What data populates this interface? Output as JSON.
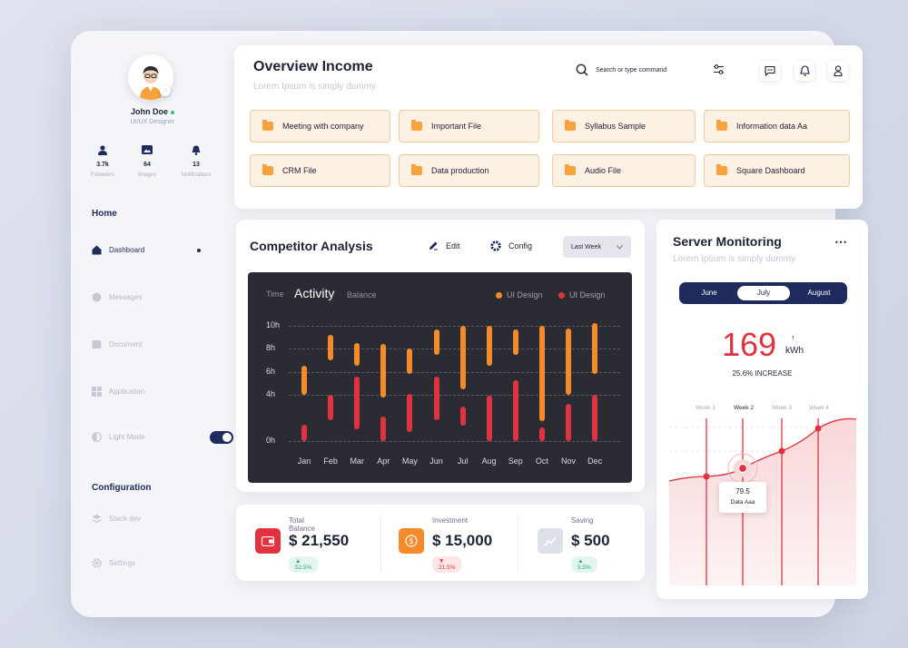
{
  "profile": {
    "name": "John Doe",
    "role": "UI/UX Designer"
  },
  "stats": [
    {
      "icon": "user-icon",
      "value": "3.7k",
      "label": "Followers"
    },
    {
      "icon": "image-icon",
      "value": "64",
      "label": "Images"
    },
    {
      "icon": "bell-icon",
      "value": "13",
      "label": "Notifications"
    }
  ],
  "sidebar": {
    "home_title": "Home",
    "items": [
      {
        "label": "Dashboard",
        "icon": "home-icon"
      },
      {
        "label": "Messages",
        "icon": "message-icon"
      },
      {
        "label": "Document",
        "icon": "document-icon"
      },
      {
        "label": "Application",
        "icon": "grid-icon"
      },
      {
        "label": "Light Mode",
        "icon": "contrast-icon"
      }
    ],
    "config_title": "Configuration",
    "config_items": [
      {
        "label": "Stack dev",
        "icon": "layers-icon"
      },
      {
        "label": "Settings",
        "icon": "gear-icon"
      }
    ]
  },
  "overview": {
    "title": "Overview Income",
    "subtitle": "Lorem Ipsum is simply dummy",
    "search_placeholder": "Search or type command",
    "folders": [
      "Meeting with company",
      "Important File",
      "Syllabus Sample",
      "Information data Aa",
      "CRM File",
      "Data production",
      "Audio File",
      "Square Dashboard"
    ]
  },
  "competitor": {
    "title": "Competitor Analysis",
    "edit_label": "Edit",
    "config_label": "Config",
    "period": "Last Week"
  },
  "chart_data": {
    "type": "bar",
    "title": "Activity",
    "left_label": "Time",
    "right_label": "Balance",
    "categories": [
      "Jan",
      "Feb",
      "Mar",
      "Apr",
      "May",
      "Jun",
      "Jul",
      "Aug",
      "Sep",
      "Oct",
      "Nov",
      "Dec"
    ],
    "yticks": [
      "10h",
      "8h",
      "6h",
      "4h",
      "0h"
    ],
    "ylim": [
      0,
      10
    ],
    "series": [
      {
        "name": "UI Design",
        "color": "#f58a2b",
        "ranges": [
          [
            4,
            6.5
          ],
          [
            7,
            9.2
          ],
          [
            6.5,
            8.5
          ],
          [
            3.8,
            8.4
          ],
          [
            5.8,
            8
          ],
          [
            7.5,
            9.7
          ],
          [
            4.5,
            10
          ],
          [
            6.5,
            10
          ],
          [
            7.5,
            9.7
          ],
          [
            1.7,
            10
          ],
          [
            4,
            9.8
          ],
          [
            5.8,
            10.2
          ]
        ]
      },
      {
        "name": "UI Design",
        "color": "#e0333f",
        "ranges": [
          [
            0,
            1.4
          ],
          [
            1.8,
            4
          ],
          [
            1,
            5.6
          ],
          [
            0,
            2.1
          ],
          [
            0.8,
            4.1
          ],
          [
            1.8,
            5.6
          ],
          [
            1.3,
            3
          ],
          [
            0,
            3.9
          ],
          [
            0,
            5.3
          ],
          [
            0,
            1.2
          ],
          [
            0,
            3.2
          ],
          [
            0,
            4
          ]
        ]
      }
    ]
  },
  "balances": [
    {
      "label": "Total Balance",
      "value": "$ 21,550",
      "change": "▲ 52.5%",
      "color": "#e0333f",
      "trend": "up"
    },
    {
      "label": "Investment",
      "value": "$ 15,000",
      "change": "▼ 21.5%",
      "color": "#f58a2b",
      "trend": "down"
    },
    {
      "label": "Saving",
      "value": "$ 500",
      "change": "▲ 5.5%",
      "color": "#dde0e8",
      "trend": "up"
    }
  ],
  "server": {
    "title": "Server Monitoring",
    "subtitle": "Lorem Ipsum is simply dummy",
    "tabs": [
      "June",
      "July",
      "August"
    ],
    "active_tab": "July",
    "value": "169",
    "unit": "kWh",
    "change": "25.6% INCREASE",
    "weeks": [
      "Week 1",
      "Week 2",
      "Week 3",
      "Week 4"
    ],
    "tooltip_value": "79.5",
    "tooltip_label": "Data Aaa"
  }
}
